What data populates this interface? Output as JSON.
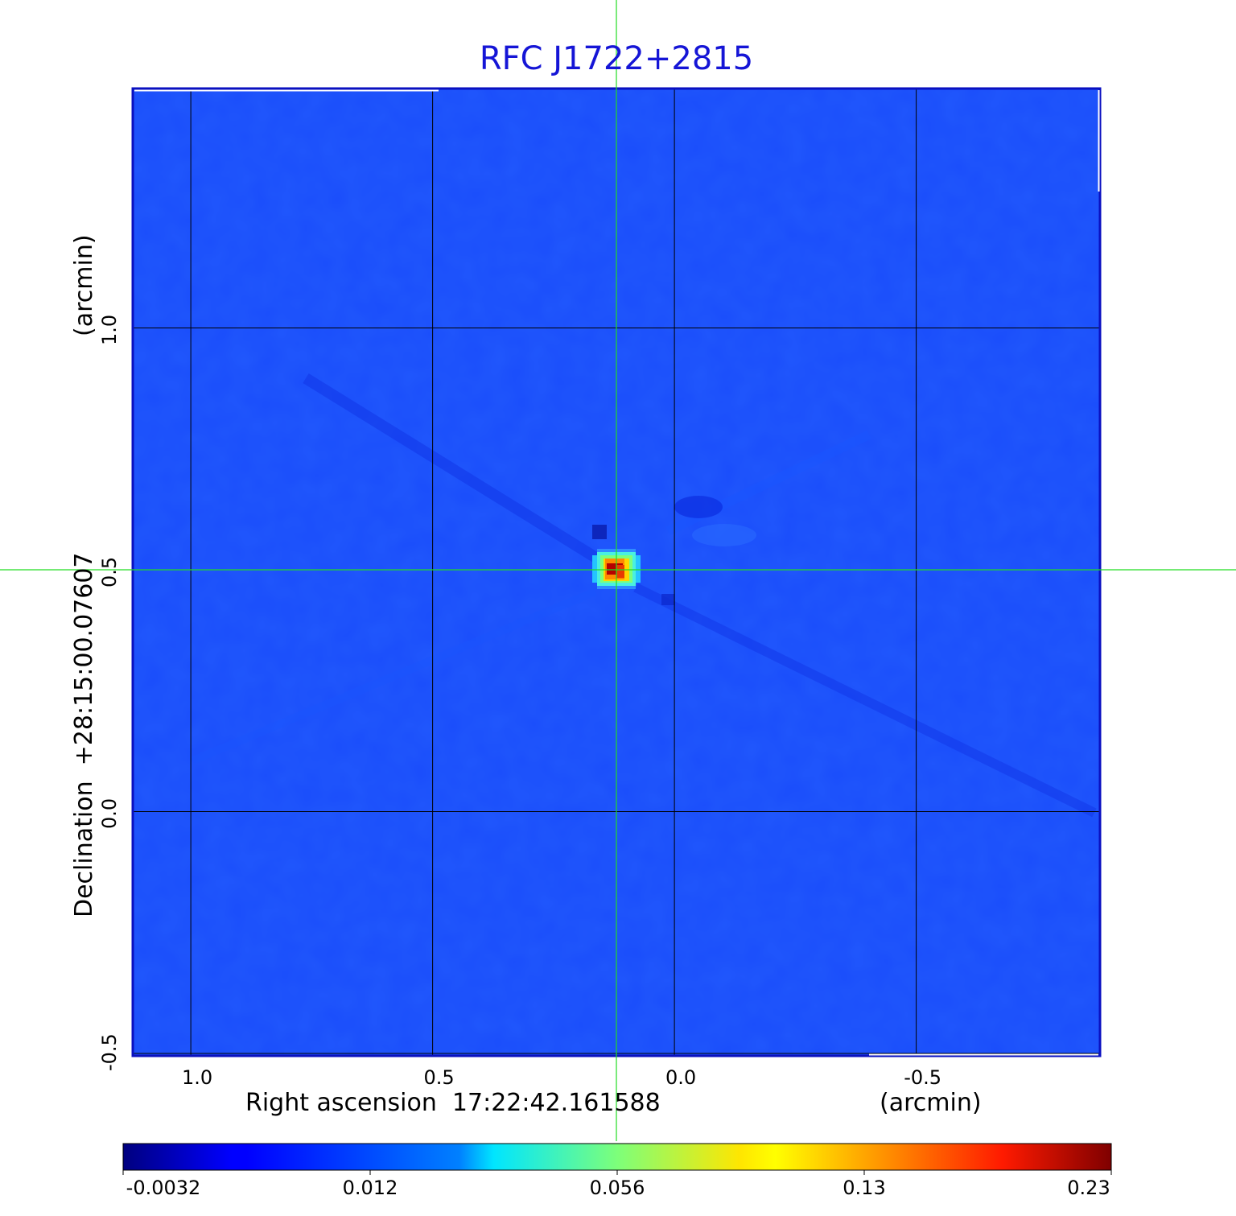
{
  "chart_data": {
    "type": "heatmap",
    "title": "RFC J1722+2815",
    "xlabel": "Right ascension  17:22:42.161588",
    "xunit": "(arcmin)",
    "ylabel": "Declination  +28:15:00.07607",
    "yunit": "(arcmin)",
    "x_ticks": [
      "1.0",
      "0.5",
      "0.0",
      "-0.5"
    ],
    "x_tick_values": [
      1.0,
      0.5,
      0.0,
      -0.5
    ],
    "y_ticks": [
      "1.0",
      "0.5",
      "0.0",
      "-0.5"
    ],
    "y_tick_values": [
      1.0,
      0.5,
      0.0,
      -0.5
    ],
    "xlim": [
      1.12,
      -0.88
    ],
    "ylim": [
      -0.505,
      1.495
    ],
    "grid": true,
    "colormap": "jet",
    "colorbar": {
      "ticks": [
        "-0.0032",
        "0.012",
        "0.056",
        "0.13",
        "0.23"
      ],
      "tick_values": [
        -0.0032,
        0.012,
        0.056,
        0.13,
        0.23
      ],
      "placement": "bottom"
    },
    "background_level": 0.005,
    "peak": {
      "x": 0.12,
      "y": 0.5,
      "value": 0.23
    },
    "crosshair": {
      "x": 0.12,
      "y": 0.5,
      "color": "#22dd22"
    }
  }
}
